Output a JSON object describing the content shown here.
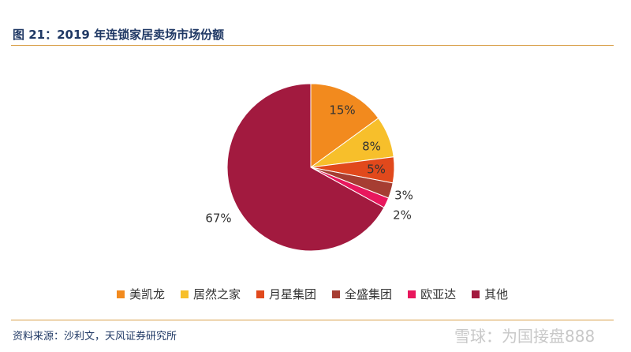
{
  "figure": {
    "title": "图 21：2019 年连锁家居卖场市场份额",
    "source": "资料来源：沙利文，天风证券研究所",
    "watermark": "雪球：为国接盘888"
  },
  "chart_data": {
    "type": "pie",
    "title": "",
    "start": "12 o'clock",
    "direction": "clockwise",
    "legend_position": "bottom",
    "slices": [
      {
        "name": "美凯龙",
        "value": 15,
        "label": "15%",
        "color": "#f28a1e"
      },
      {
        "name": "居然之家",
        "value": 8,
        "label": "8%",
        "color": "#f7bf2b"
      },
      {
        "name": "月星集团",
        "value": 5,
        "label": "5%",
        "color": "#e1491c"
      },
      {
        "name": "全盛集团",
        "value": 3,
        "label": "3%",
        "color": "#a63d32"
      },
      {
        "name": "欧亚达",
        "value": 2,
        "label": "2%",
        "color": "#e8175d"
      },
      {
        "name": "其他",
        "value": 67,
        "label": "67%",
        "color": "#a21a3f"
      }
    ]
  }
}
